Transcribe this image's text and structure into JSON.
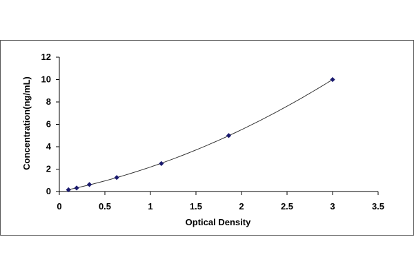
{
  "chart_data": {
    "type": "scatter",
    "xlabel": "Optical Density",
    "ylabel": "Concentration(ng/mL)",
    "xlim": [
      0,
      3.5
    ],
    "ylim": [
      0,
      12
    ],
    "x_ticks": [
      0,
      0.5,
      1,
      1.5,
      2,
      2.5,
      3,
      3.5
    ],
    "x_tick_labels": [
      "0",
      "0.5",
      "1",
      "1.5",
      "2",
      "2.5",
      "3",
      "3.5"
    ],
    "y_ticks": [
      0,
      2,
      4,
      6,
      8,
      10,
      12
    ],
    "y_tick_labels": [
      "0",
      "2",
      "4",
      "6",
      "8",
      "10",
      "12"
    ],
    "grid": false,
    "legend": "none",
    "series": [
      {
        "x": [
          0.1,
          0.19,
          0.33,
          0.63,
          1.12,
          1.86,
          3.0
        ],
        "y": [
          0.156,
          0.312,
          0.625,
          1.25,
          2.5,
          5,
          10
        ],
        "marker": "diamond",
        "fit_line": true
      }
    ],
    "colors": {
      "marker": "#1a1a6e",
      "line": "#333333",
      "axis": "#000000",
      "frame": "#555555"
    }
  }
}
